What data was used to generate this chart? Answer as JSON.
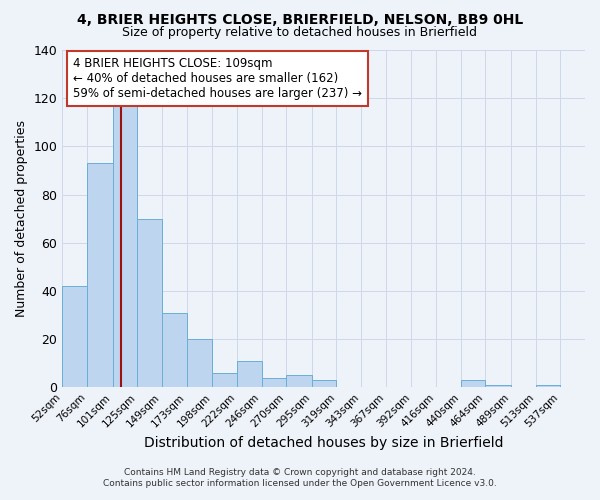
{
  "title": "4, BRIER HEIGHTS CLOSE, BRIERFIELD, NELSON, BB9 0HL",
  "subtitle": "Size of property relative to detached houses in Brierfield",
  "xlabel": "Distribution of detached houses by size in Brierfield",
  "ylabel": "Number of detached properties",
  "bin_labels": [
    "52sqm",
    "76sqm",
    "101sqm",
    "125sqm",
    "149sqm",
    "173sqm",
    "198sqm",
    "222sqm",
    "246sqm",
    "270sqm",
    "295sqm",
    "319sqm",
    "343sqm",
    "367sqm",
    "392sqm",
    "416sqm",
    "440sqm",
    "464sqm",
    "489sqm",
    "513sqm",
    "537sqm"
  ],
  "bin_edges": [
    52,
    76,
    101,
    125,
    149,
    173,
    198,
    222,
    246,
    270,
    295,
    319,
    343,
    367,
    392,
    416,
    440,
    464,
    489,
    513,
    537
  ],
  "bar_heights": [
    42,
    93,
    117,
    70,
    31,
    20,
    6,
    11,
    4,
    5,
    3,
    0,
    0,
    0,
    0,
    0,
    3,
    1,
    0,
    1
  ],
  "bar_color": "#bdd5ee",
  "bar_edge_color": "#6aaed6",
  "vline_x": 109,
  "vline_color": "#9b1111",
  "annotation_title": "4 BRIER HEIGHTS CLOSE: 109sqm",
  "annotation_line1": "← 40% of detached houses are smaller (162)",
  "annotation_line2": "59% of semi-detached houses are larger (237) →",
  "annotation_box_facecolor": "#ffffff",
  "annotation_box_edgecolor": "#c0392b",
  "ylim": [
    0,
    140
  ],
  "grid_color": "#cdd8ea",
  "background_color": "#eef2f9",
  "footnote1": "Contains HM Land Registry data © Crown copyright and database right 2024.",
  "footnote2": "Contains public sector information licensed under the Open Government Licence v3.0."
}
